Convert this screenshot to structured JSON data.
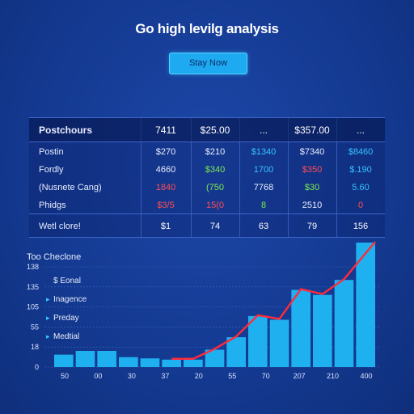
{
  "page": {
    "title": "Go high levilg analysis",
    "cta_label": "Stay Now"
  },
  "table": {
    "header": {
      "label": "Postchours",
      "cells": [
        "7411",
        "$25.00",
        "...",
        "$357.00",
        "..."
      ]
    },
    "rows": [
      {
        "label": "Postin",
        "cells": [
          "$270",
          "$210",
          "$1340",
          "$7340",
          "$8460"
        ],
        "colors": [
          "#e8eeff",
          "#e8eeff",
          "#37c3ff",
          "#e8eeff",
          "#37c3ff"
        ]
      },
      {
        "label": "Fordly",
        "cells": [
          "4660",
          "$340",
          "1700",
          "$350",
          "$.190"
        ],
        "colors": [
          "#e8eeff",
          "#7be84f",
          "#37c3ff",
          "#ff4d57",
          "#37c3ff"
        ]
      },
      {
        "label": "(Nusnete Cang)",
        "cells": [
          "1840",
          "(750",
          "7768",
          "$30",
          "5.60"
        ],
        "colors": [
          "#ff4d57",
          "#7be84f",
          "#e8eeff",
          "#7be84f",
          "#37c3ff"
        ]
      },
      {
        "label": "Phidgs",
        "cells": [
          "$3/5",
          "15(0",
          "8",
          "2510",
          "0"
        ],
        "colors": [
          "#ff4d57",
          "#ff4d57",
          "#7be84f",
          "#e8eeff",
          "#ff4d57"
        ]
      }
    ],
    "footer": {
      "label": "Wetl clore!",
      "cells": [
        "$1",
        "74",
        "63",
        "79",
        "156"
      ]
    }
  },
  "chart_data": {
    "type": "bar",
    "title": "Too Checlone",
    "legend": [
      {
        "name": "$ Eonal",
        "icon": "dollar-icon"
      },
      {
        "name": "Inagence",
        "icon": "bullet-icon"
      },
      {
        "name": "Preday",
        "icon": "bullet-icon"
      },
      {
        "name": "Medtial",
        "icon": "bullet-icon"
      }
    ],
    "y_tick_labels": [
      "0",
      "18",
      "55",
      "105",
      "135",
      "138"
    ],
    "x_tick_labels": [
      "50",
      "00",
      "30",
      "37",
      "20",
      "55",
      "70",
      "207",
      "210",
      "400"
    ],
    "values": [
      0.1,
      0.13,
      0.13,
      0.08,
      0.07,
      0.06,
      0.06,
      0.14,
      0.24,
      0.41,
      0.38,
      0.62,
      0.58,
      0.7,
      1.0
    ],
    "trend_line_color": "#ff2b3a",
    "bar_color": "#1fb0f0"
  }
}
